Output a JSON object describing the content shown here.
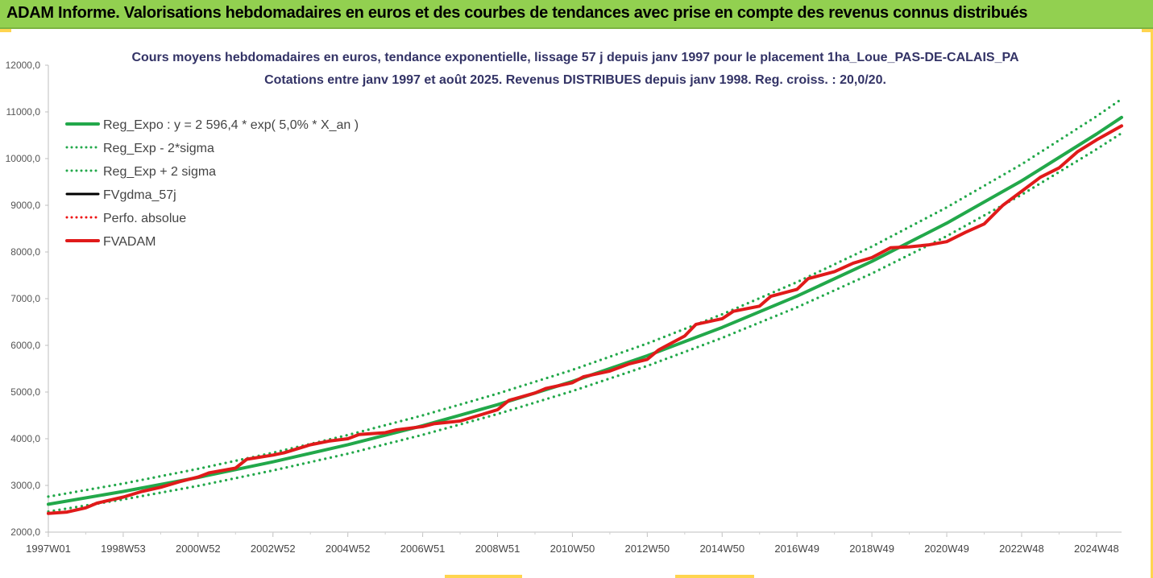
{
  "banner": {
    "title": "ADAM Informe. Valorisations hebdomadaires en euros et des courbes de tendances avec prise en compte des revenus connus distribués"
  },
  "chart_data": {
    "type": "line",
    "title": "Cours moyens hebdomadaires en euros, tendance exponentielle, lissage 57 j depuis janv 1997 pour le placement 1ha_Loue_PAS-DE-CALAIS_PA",
    "subtitle": "Cotations entre janv 1997 et août 2025. Revenus DISTRIBUES depuis janv 1998. Reg. croiss. : 20,0/20.",
    "xlabel": "",
    "ylabel": "",
    "ylim": [
      2000,
      12000
    ],
    "xlim": [
      1997.0,
      2025.67
    ],
    "yticks": [
      "2000,0",
      "3000,0",
      "4000,0",
      "5000,0",
      "6000,0",
      "7000,0",
      "8000,0",
      "9000,0",
      "10000,0",
      "11000,0",
      "12000,0"
    ],
    "xticks": [
      {
        "label": "1997W01",
        "x": 1997.0
      },
      {
        "label": "1998W53",
        "x": 1999.0
      },
      {
        "label": "2000W52",
        "x": 2001.0
      },
      {
        "label": "2002W52",
        "x": 2003.0
      },
      {
        "label": "2004W52",
        "x": 2005.0
      },
      {
        "label": "2006W51",
        "x": 2007.0
      },
      {
        "label": "2008W51",
        "x": 2009.0
      },
      {
        "label": "2010W50",
        "x": 2011.0
      },
      {
        "label": "2012W50",
        "x": 2013.0
      },
      {
        "label": "2014W50",
        "x": 2015.0
      },
      {
        "label": "2016W49",
        "x": 2017.0
      },
      {
        "label": "2018W49",
        "x": 2019.0
      },
      {
        "label": "2020W49",
        "x": 2021.0
      },
      {
        "label": "2022W48",
        "x": 2023.0
      },
      {
        "label": "2024W48",
        "x": 2025.0
      }
    ],
    "grid": false,
    "legend_position": "top-left",
    "series": [
      {
        "name": "Reg_Expo : y = 2 596,4 * exp( 5,0% *  X_an )",
        "color": "#22a84a",
        "style": "solid",
        "x": [
          1997.0,
          1999.0,
          2001.0,
          2003.0,
          2005.0,
          2007.0,
          2009.0,
          2011.0,
          2013.0,
          2015.0,
          2017.0,
          2019.0,
          2021.0,
          2023.0,
          2025.0,
          2025.67
        ],
        "y": [
          2596,
          2870,
          3170,
          3505,
          3873,
          4280,
          4730,
          5227,
          5777,
          6385,
          7056,
          7798,
          8618,
          9524,
          10525,
          10882
        ]
      },
      {
        "name": "Reg_Exp - 2*sigma",
        "color": "#22a84a",
        "style": "dotted",
        "x": [
          1997.0,
          1999.0,
          2001.0,
          2003.0,
          2005.0,
          2007.0,
          2009.0,
          2011.0,
          2013.0,
          2015.0,
          2017.0,
          2019.0,
          2021.0,
          2023.0,
          2025.0,
          2025.67
        ],
        "y": [
          2440,
          2700,
          2990,
          3320,
          3680,
          4085,
          4530,
          5020,
          5560,
          6160,
          6815,
          7540,
          8340,
          9225,
          10200,
          10545
        ]
      },
      {
        "name": "Reg_Exp + 2 sigma",
        "color": "#22a84a",
        "style": "dotted",
        "x": [
          1997.0,
          1999.0,
          2001.0,
          2003.0,
          2005.0,
          2007.0,
          2009.0,
          2011.0,
          2013.0,
          2015.0,
          2017.0,
          2019.0,
          2021.0,
          2023.0,
          2025.0,
          2025.67
        ],
        "y": [
          2760,
          3040,
          3355,
          3700,
          4080,
          4500,
          4965,
          5475,
          6040,
          6665,
          7355,
          8115,
          8955,
          9880,
          10905,
          11275
        ]
      },
      {
        "name": "FVgdma_57j",
        "color": "#000000",
        "style": "solid",
        "x": [
          1997.0,
          1997.5,
          1998.0,
          1998.3,
          1999.0,
          1999.5,
          2000.0,
          2000.5,
          2001.0,
          2001.3,
          2002.0,
          2002.3,
          2003.0,
          2003.3,
          2004.0,
          2004.5,
          2005.0,
          2005.3,
          2006.0,
          2006.3,
          2007.0,
          2007.3,
          2008.0,
          2008.5,
          2009.0,
          2009.3,
          2010.0,
          2010.3,
          2011.0,
          2011.3,
          2012.0,
          2012.5,
          2013.0,
          2013.3,
          2014.0,
          2014.3,
          2015.0,
          2015.3,
          2016.0,
          2016.3,
          2017.0,
          2017.3,
          2018.0,
          2018.5,
          2019.0,
          2019.5,
          2020.0,
          2020.5,
          2021.0,
          2021.5,
          2022.0,
          2022.5,
          2023.0,
          2023.5,
          2024.0,
          2024.5,
          2025.0,
          2025.67
        ],
        "y": [
          2400,
          2430,
          2520,
          2620,
          2750,
          2870,
          2960,
          3080,
          3180,
          3270,
          3370,
          3560,
          3650,
          3700,
          3870,
          3950,
          4000,
          4090,
          4130,
          4190,
          4260,
          4320,
          4380,
          4500,
          4620,
          4820,
          4980,
          5080,
          5200,
          5330,
          5450,
          5600,
          5700,
          5900,
          6200,
          6450,
          6570,
          6730,
          6840,
          7050,
          7200,
          7430,
          7580,
          7760,
          7880,
          8090,
          8110,
          8150,
          8220,
          8420,
          8600,
          9000,
          9300,
          9600,
          9800,
          10150,
          10400,
          10700
        ]
      },
      {
        "name": "Perfo. absolue",
        "color": "#ee1111",
        "style": "dotted",
        "x": [
          1997.0,
          1997.5,
          1998.0,
          1998.3,
          1999.0,
          1999.5,
          2000.0,
          2000.5,
          2001.0,
          2001.3,
          2002.0,
          2002.3,
          2003.0,
          2003.3,
          2004.0,
          2004.5,
          2005.0,
          2005.3,
          2006.0,
          2006.3,
          2007.0,
          2007.3,
          2008.0,
          2008.5,
          2009.0,
          2009.3,
          2010.0,
          2010.3,
          2011.0,
          2011.3,
          2012.0,
          2012.5,
          2013.0,
          2013.3,
          2014.0,
          2014.3,
          2015.0,
          2015.3,
          2016.0,
          2016.3,
          2017.0,
          2017.3,
          2018.0,
          2018.5,
          2019.0,
          2019.5,
          2020.0,
          2020.5,
          2021.0,
          2021.5,
          2022.0,
          2022.5,
          2023.0,
          2023.5,
          2024.0,
          2024.5,
          2025.0,
          2025.67
        ],
        "y": [
          2400,
          2430,
          2520,
          2620,
          2750,
          2870,
          2960,
          3080,
          3180,
          3270,
          3370,
          3560,
          3650,
          3700,
          3870,
          3950,
          4000,
          4090,
          4130,
          4190,
          4260,
          4320,
          4380,
          4500,
          4620,
          4820,
          4980,
          5080,
          5200,
          5330,
          5450,
          5600,
          5700,
          5900,
          6200,
          6450,
          6570,
          6730,
          6840,
          7050,
          7200,
          7430,
          7580,
          7760,
          7880,
          8090,
          8110,
          8150,
          8220,
          8420,
          8600,
          9000,
          9300,
          9600,
          9800,
          10150,
          10400,
          10700
        ]
      },
      {
        "name": "FVADAM",
        "color": "#e01a1a",
        "style": "solid",
        "x": [
          1997.0,
          1997.5,
          1998.0,
          1998.3,
          1999.0,
          1999.5,
          2000.0,
          2000.5,
          2001.0,
          2001.3,
          2002.0,
          2002.3,
          2003.0,
          2003.3,
          2004.0,
          2004.5,
          2005.0,
          2005.3,
          2006.0,
          2006.3,
          2007.0,
          2007.3,
          2008.0,
          2008.5,
          2009.0,
          2009.3,
          2010.0,
          2010.3,
          2011.0,
          2011.3,
          2012.0,
          2012.5,
          2013.0,
          2013.3,
          2014.0,
          2014.3,
          2015.0,
          2015.3,
          2016.0,
          2016.3,
          2017.0,
          2017.3,
          2018.0,
          2018.5,
          2019.0,
          2019.5,
          2020.0,
          2020.5,
          2021.0,
          2021.5,
          2022.0,
          2022.5,
          2023.0,
          2023.5,
          2024.0,
          2024.5,
          2025.0,
          2025.67
        ],
        "y": [
          2400,
          2430,
          2520,
          2620,
          2750,
          2870,
          2960,
          3080,
          3180,
          3270,
          3370,
          3560,
          3650,
          3700,
          3870,
          3950,
          4000,
          4090,
          4130,
          4190,
          4260,
          4320,
          4380,
          4500,
          4620,
          4820,
          4980,
          5080,
          5200,
          5330,
          5450,
          5600,
          5700,
          5900,
          6200,
          6450,
          6570,
          6730,
          6840,
          7050,
          7200,
          7430,
          7580,
          7760,
          7880,
          8090,
          8110,
          8150,
          8220,
          8420,
          8600,
          9000,
          9300,
          9600,
          9800,
          10150,
          10400,
          10700
        ]
      }
    ]
  }
}
